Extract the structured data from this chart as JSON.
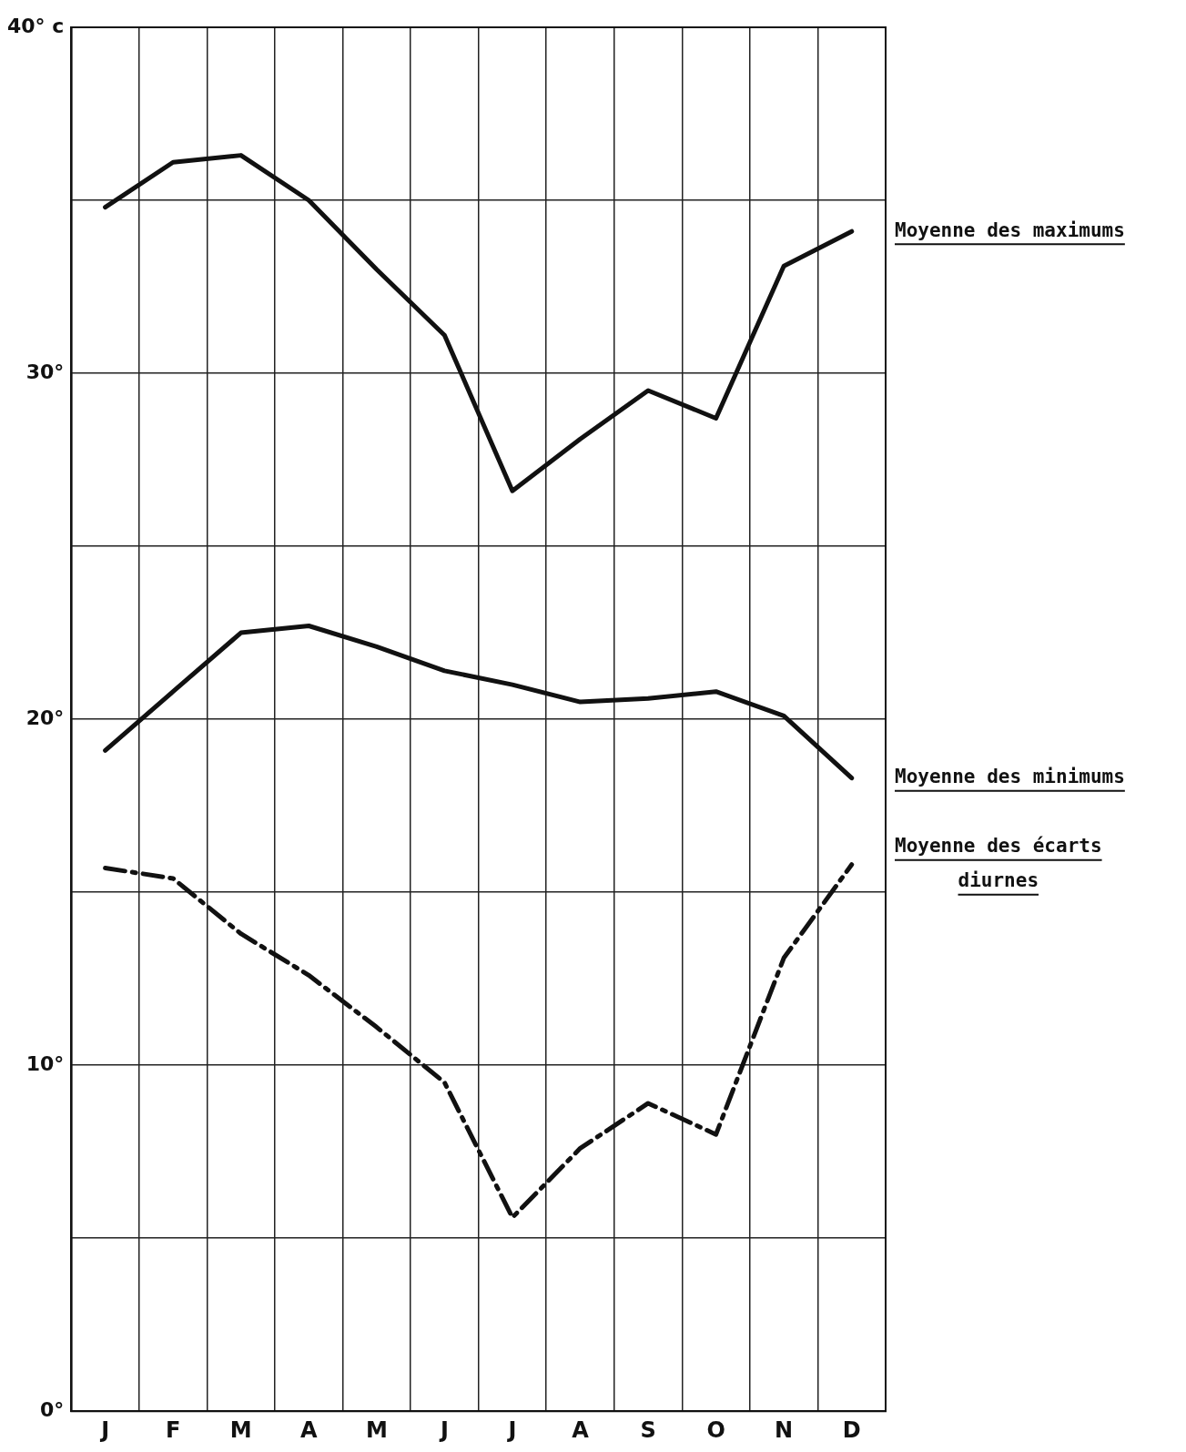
{
  "chart_data": {
    "type": "line",
    "categories": [
      "J",
      "F",
      "M",
      "A",
      "M",
      "J",
      "J",
      "A",
      "S",
      "O",
      "N",
      "D"
    ],
    "series": [
      {
        "name": "Moyenne des maximums",
        "color": "#111111",
        "line_style": "solid",
        "values": [
          34.8,
          36.1,
          36.3,
          35.0,
          33.0,
          31.1,
          26.6,
          28.1,
          29.5,
          28.7,
          33.1,
          34.1
        ]
      },
      {
        "name": "Moyenne des minimums",
        "color": "#111111",
        "line_style": "solid",
        "values": [
          19.1,
          20.8,
          22.5,
          22.7,
          22.1,
          21.4,
          21.0,
          20.5,
          20.6,
          20.8,
          20.1,
          18.3
        ]
      },
      {
        "name": "Moyenne des écarts diurnes",
        "color": "#111111",
        "line_style": "dashed",
        "values": [
          15.7,
          15.4,
          13.8,
          12.6,
          11.1,
          9.5,
          5.6,
          7.6,
          8.9,
          8.0,
          13.1,
          15.8
        ]
      }
    ],
    "ylim": [
      0,
      40
    ],
    "yticks": [
      {
        "value": 0,
        "label": "0°"
      },
      {
        "value": 5,
        "label": null
      },
      {
        "value": 10,
        "label": "10°"
      },
      {
        "value": 15,
        "label": null
      },
      {
        "value": 20,
        "label": "20°"
      },
      {
        "value": 25,
        "label": null
      },
      {
        "value": 30,
        "label": "30°"
      },
      {
        "value": 35,
        "label": null
      },
      {
        "value": 40,
        "label": "40° c"
      }
    ],
    "grid": true,
    "legend": false,
    "marker": "none"
  }
}
